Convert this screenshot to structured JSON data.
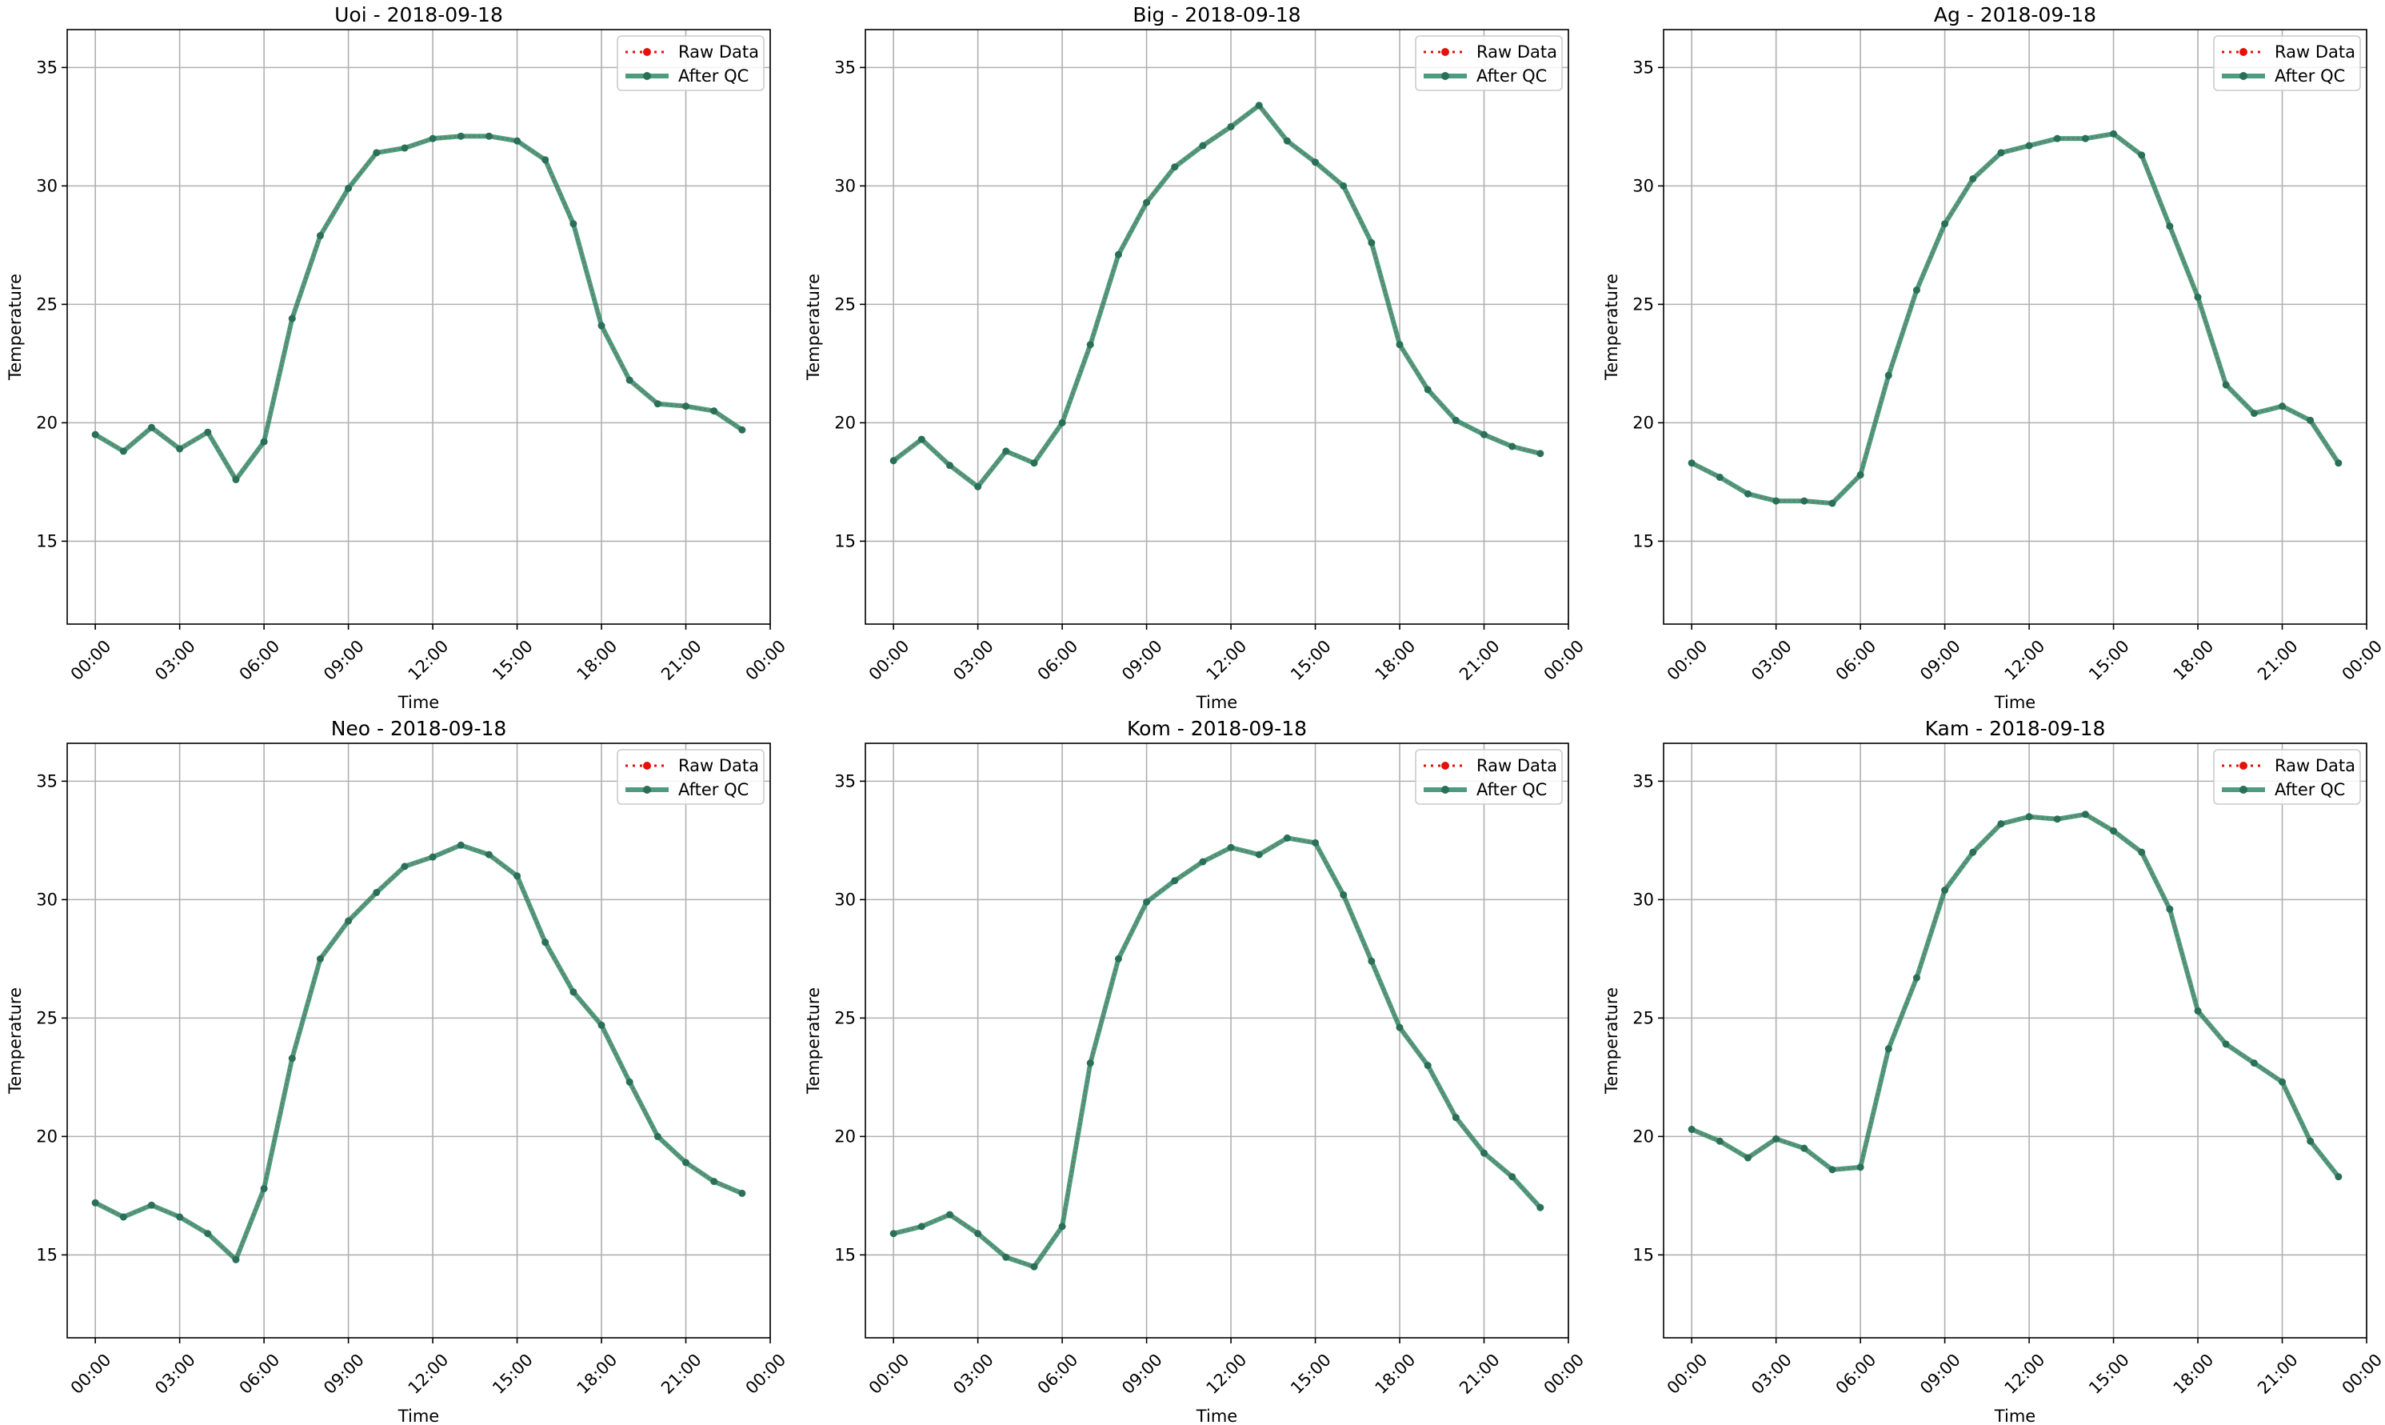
{
  "colors": {
    "raw": "#e3120b",
    "qc": "#2e8b68",
    "grid": "#b0b0b0"
  },
  "chart_data": [
    {
      "type": "line",
      "title": "Uoi - 2018-09-18",
      "xlabel": "Time",
      "ylabel": "Temperature",
      "ylim": [
        11.5,
        36.6
      ],
      "xlim": [
        -1,
        24
      ],
      "yticks": [
        15,
        20,
        25,
        30,
        35
      ],
      "xticks": [
        0,
        3,
        6,
        9,
        12,
        15,
        18,
        21,
        24
      ],
      "xtick_labels": [
        "00:00",
        "03:00",
        "06:00",
        "09:00",
        "12:00",
        "15:00",
        "18:00",
        "21:00",
        "00:00"
      ],
      "x": [
        0,
        1,
        2,
        3,
        4,
        5,
        6,
        7,
        8,
        9,
        10,
        11,
        12,
        13,
        14,
        15,
        16,
        17,
        18,
        19,
        20,
        21,
        22,
        23
      ],
      "legend": [
        "Raw Data",
        "After QC"
      ],
      "legend_position": "upper right",
      "grid": true,
      "series": [
        {
          "name": "Raw Data",
          "values": [
            19.5,
            18.8,
            19.8,
            18.9,
            19.6,
            17.6,
            19.2,
            24.4,
            27.9,
            29.9,
            31.4,
            31.6,
            32.0,
            32.1,
            32.1,
            31.9,
            31.1,
            28.4,
            24.1,
            21.8,
            20.8,
            20.7,
            20.5,
            19.7
          ]
        },
        {
          "name": "After QC",
          "values": [
            19.5,
            18.8,
            19.8,
            18.9,
            19.6,
            17.6,
            19.2,
            24.4,
            27.9,
            29.9,
            31.4,
            31.6,
            32.0,
            32.1,
            32.1,
            31.9,
            31.1,
            28.4,
            24.1,
            21.8,
            20.8,
            20.7,
            20.5,
            19.7
          ]
        }
      ]
    },
    {
      "type": "line",
      "title": "Big - 2018-09-18",
      "xlabel": "Time",
      "ylabel": "Temperature",
      "ylim": [
        11.5,
        36.6
      ],
      "xlim": [
        -1,
        24
      ],
      "yticks": [
        15,
        20,
        25,
        30,
        35
      ],
      "xticks": [
        0,
        3,
        6,
        9,
        12,
        15,
        18,
        21,
        24
      ],
      "xtick_labels": [
        "00:00",
        "03:00",
        "06:00",
        "09:00",
        "12:00",
        "15:00",
        "18:00",
        "21:00",
        "00:00"
      ],
      "x": [
        0,
        1,
        2,
        3,
        4,
        5,
        6,
        7,
        8,
        9,
        10,
        11,
        12,
        13,
        14,
        15,
        16,
        17,
        18,
        19,
        20,
        21,
        22,
        23
      ],
      "legend": [
        "Raw Data",
        "After QC"
      ],
      "legend_position": "upper right",
      "grid": true,
      "series": [
        {
          "name": "Raw Data",
          "values": [
            18.4,
            19.3,
            18.2,
            17.3,
            18.8,
            18.3,
            20.0,
            23.3,
            27.1,
            29.3,
            30.8,
            31.7,
            32.5,
            33.4,
            31.9,
            31.0,
            30.0,
            27.6,
            23.3,
            21.4,
            20.1,
            19.5,
            19.0,
            18.7
          ]
        },
        {
          "name": "After QC",
          "values": [
            18.4,
            19.3,
            18.2,
            17.3,
            18.8,
            18.3,
            20.0,
            23.3,
            27.1,
            29.3,
            30.8,
            31.7,
            32.5,
            33.4,
            31.9,
            31.0,
            30.0,
            27.6,
            23.3,
            21.4,
            20.1,
            19.5,
            19.0,
            18.7
          ]
        }
      ]
    },
    {
      "type": "line",
      "title": "Ag - 2018-09-18",
      "xlabel": "Time",
      "ylabel": "Temperature",
      "ylim": [
        11.5,
        36.6
      ],
      "xlim": [
        -1,
        24
      ],
      "yticks": [
        15,
        20,
        25,
        30,
        35
      ],
      "xticks": [
        0,
        3,
        6,
        9,
        12,
        15,
        18,
        21,
        24
      ],
      "xtick_labels": [
        "00:00",
        "03:00",
        "06:00",
        "09:00",
        "12:00",
        "15:00",
        "18:00",
        "21:00",
        "00:00"
      ],
      "x": [
        0,
        1,
        2,
        3,
        4,
        5,
        6,
        7,
        8,
        9,
        10,
        11,
        12,
        13,
        14,
        15,
        16,
        17,
        18,
        19,
        20,
        21,
        22,
        23
      ],
      "legend": [
        "Raw Data",
        "After QC"
      ],
      "legend_position": "upper right",
      "grid": true,
      "series": [
        {
          "name": "Raw Data",
          "values": [
            18.3,
            17.7,
            17.0,
            16.7,
            16.7,
            16.6,
            17.8,
            22.0,
            25.6,
            28.4,
            30.3,
            31.4,
            31.7,
            32.0,
            32.0,
            32.2,
            31.3,
            28.3,
            25.3,
            21.6,
            20.4,
            20.7,
            20.1,
            18.3
          ]
        },
        {
          "name": "After QC",
          "values": [
            18.3,
            17.7,
            17.0,
            16.7,
            16.7,
            16.6,
            17.8,
            22.0,
            25.6,
            28.4,
            30.3,
            31.4,
            31.7,
            32.0,
            32.0,
            32.2,
            31.3,
            28.3,
            25.3,
            21.6,
            20.4,
            20.7,
            20.1,
            18.3
          ]
        }
      ]
    },
    {
      "type": "line",
      "title": "Neo - 2018-09-18",
      "xlabel": "Time",
      "ylabel": "Temperature",
      "ylim": [
        11.5,
        36.6
      ],
      "xlim": [
        -1,
        24
      ],
      "yticks": [
        15,
        20,
        25,
        30,
        35
      ],
      "xticks": [
        0,
        3,
        6,
        9,
        12,
        15,
        18,
        21,
        24
      ],
      "xtick_labels": [
        "00:00",
        "03:00",
        "06:00",
        "09:00",
        "12:00",
        "15:00",
        "18:00",
        "21:00",
        "00:00"
      ],
      "x": [
        0,
        1,
        2,
        3,
        4,
        5,
        6,
        7,
        8,
        9,
        10,
        11,
        12,
        13,
        14,
        15,
        16,
        17,
        18,
        19,
        20,
        21,
        22,
        23
      ],
      "legend": [
        "Raw Data",
        "After QC"
      ],
      "legend_position": "upper right",
      "grid": true,
      "series": [
        {
          "name": "Raw Data",
          "values": [
            17.2,
            16.6,
            17.1,
            16.6,
            15.9,
            14.8,
            17.8,
            23.3,
            27.5,
            29.1,
            30.3,
            31.4,
            31.8,
            32.3,
            31.9,
            31.0,
            28.2,
            26.1,
            24.7,
            22.3,
            20.0,
            18.9,
            18.1,
            17.6
          ]
        },
        {
          "name": "After QC",
          "values": [
            17.2,
            16.6,
            17.1,
            16.6,
            15.9,
            14.8,
            17.8,
            23.3,
            27.5,
            29.1,
            30.3,
            31.4,
            31.8,
            32.3,
            31.9,
            31.0,
            28.2,
            26.1,
            24.7,
            22.3,
            20.0,
            18.9,
            18.1,
            17.6
          ]
        }
      ]
    },
    {
      "type": "line",
      "title": "Kom - 2018-09-18",
      "xlabel": "Time",
      "ylabel": "Temperature",
      "ylim": [
        11.5,
        36.6
      ],
      "xlim": [
        -1,
        24
      ],
      "yticks": [
        15,
        20,
        25,
        30,
        35
      ],
      "xticks": [
        0,
        3,
        6,
        9,
        12,
        15,
        18,
        21,
        24
      ],
      "xtick_labels": [
        "00:00",
        "03:00",
        "06:00",
        "09:00",
        "12:00",
        "15:00",
        "18:00",
        "21:00",
        "00:00"
      ],
      "x": [
        0,
        1,
        2,
        3,
        4,
        5,
        6,
        7,
        8,
        9,
        10,
        11,
        12,
        13,
        14,
        15,
        16,
        17,
        18,
        19,
        20,
        21,
        22,
        23
      ],
      "legend": [
        "Raw Data",
        "After QC"
      ],
      "legend_position": "upper right",
      "grid": true,
      "series": [
        {
          "name": "Raw Data",
          "values": [
            15.9,
            16.2,
            16.7,
            15.9,
            14.9,
            14.5,
            16.2,
            23.1,
            27.5,
            29.9,
            30.8,
            31.6,
            32.2,
            31.9,
            32.6,
            32.4,
            30.2,
            27.4,
            24.6,
            23.0,
            20.8,
            19.3,
            18.3,
            17.0
          ]
        },
        {
          "name": "After QC",
          "values": [
            15.9,
            16.2,
            16.7,
            15.9,
            14.9,
            14.5,
            16.2,
            23.1,
            27.5,
            29.9,
            30.8,
            31.6,
            32.2,
            31.9,
            32.6,
            32.4,
            30.2,
            27.4,
            24.6,
            23.0,
            20.8,
            19.3,
            18.3,
            17.0
          ]
        }
      ]
    },
    {
      "type": "line",
      "title": "Kam - 2018-09-18",
      "xlabel": "Time",
      "ylabel": "Temperature",
      "ylim": [
        11.5,
        36.6
      ],
      "xlim": [
        -1,
        24
      ],
      "yticks": [
        15,
        20,
        25,
        30,
        35
      ],
      "xticks": [
        0,
        3,
        6,
        9,
        12,
        15,
        18,
        21,
        24
      ],
      "xtick_labels": [
        "00:00",
        "03:00",
        "06:00",
        "09:00",
        "12:00",
        "15:00",
        "18:00",
        "21:00",
        "00:00"
      ],
      "x": [
        0,
        1,
        2,
        3,
        4,
        5,
        6,
        7,
        8,
        9,
        10,
        11,
        12,
        13,
        14,
        15,
        16,
        17,
        18,
        19,
        20,
        21,
        22,
        23
      ],
      "legend": [
        "Raw Data",
        "After QC"
      ],
      "legend_position": "upper right",
      "grid": true,
      "series": [
        {
          "name": "Raw Data",
          "values": [
            20.3,
            19.8,
            19.1,
            19.9,
            19.5,
            18.6,
            18.7,
            23.7,
            26.7,
            30.4,
            32.0,
            33.2,
            33.5,
            33.4,
            33.6,
            32.9,
            32.0,
            29.6,
            25.3,
            23.9,
            23.1,
            22.3,
            19.8,
            18.3
          ]
        },
        {
          "name": "After QC",
          "values": [
            20.3,
            19.8,
            19.1,
            19.9,
            19.5,
            18.6,
            18.7,
            23.7,
            26.7,
            30.4,
            32.0,
            33.2,
            33.5,
            33.4,
            33.6,
            32.9,
            32.0,
            29.6,
            25.3,
            23.9,
            23.1,
            22.3,
            19.8,
            18.3
          ]
        }
      ]
    }
  ]
}
